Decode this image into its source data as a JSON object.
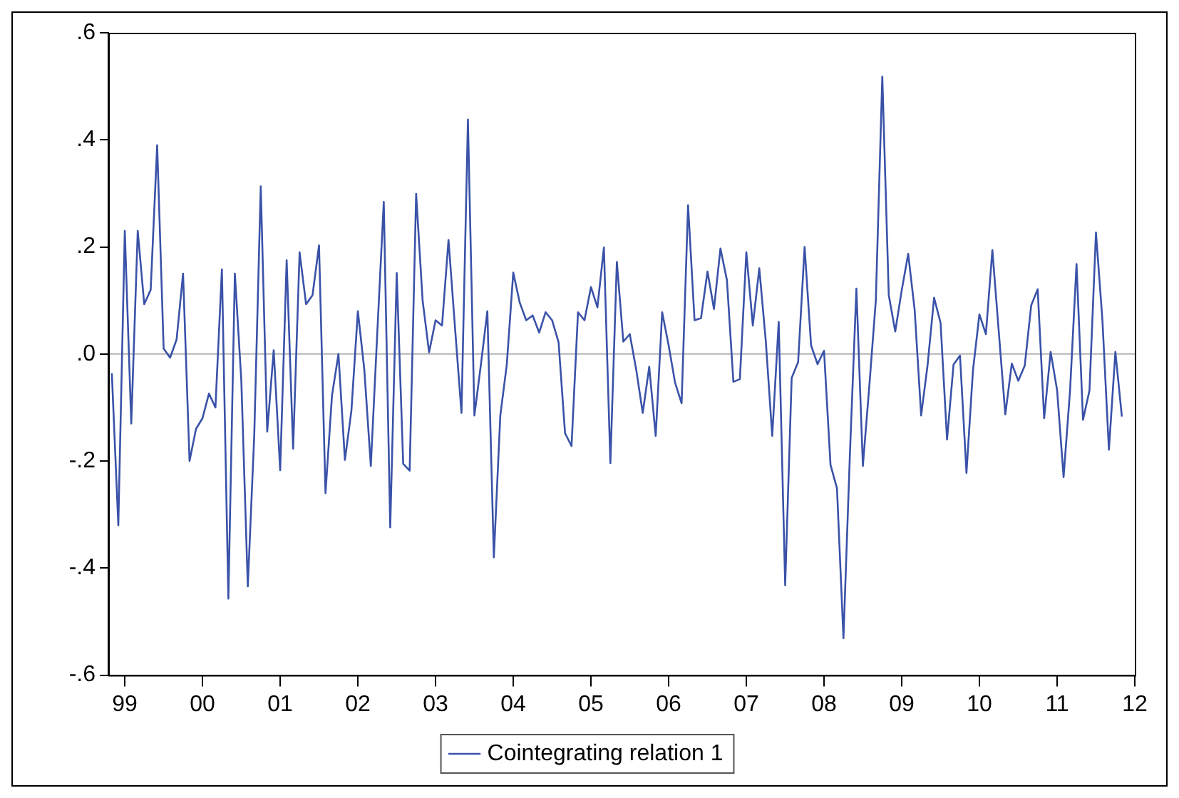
{
  "chart_data": {
    "type": "line",
    "x": [
      "1999-06",
      "1999-07",
      "1999-08",
      "1999-09",
      "1999-10",
      "1999-11",
      "1999-12",
      "2000-01",
      "2000-02",
      "2000-03",
      "2000-04",
      "2000-05",
      "2000-06",
      "2000-07",
      "2000-08",
      "2000-09",
      "2000-10",
      "2000-11",
      "2000-12",
      "2001-01",
      "2001-02",
      "2001-03",
      "2001-04",
      "2001-05",
      "2001-06",
      "2001-07",
      "2001-08",
      "2001-09",
      "2001-10",
      "2001-11",
      "2001-12",
      "2002-01",
      "2002-02",
      "2002-03",
      "2002-04",
      "2002-05",
      "2002-06",
      "2002-07",
      "2002-08",
      "2002-09",
      "2002-10",
      "2002-11",
      "2002-12",
      "2003-01",
      "2003-02",
      "2003-03",
      "2003-04",
      "2003-05",
      "2003-06",
      "2003-07",
      "2003-08",
      "2003-09",
      "2003-10",
      "2003-11",
      "2003-12",
      "2004-01",
      "2004-02",
      "2004-03",
      "2004-04",
      "2004-05",
      "2004-06",
      "2004-07",
      "2004-08",
      "2004-09",
      "2004-10",
      "2004-11",
      "2004-12",
      "2005-01",
      "2005-02",
      "2005-03",
      "2005-04",
      "2005-05",
      "2005-06",
      "2005-07",
      "2005-08",
      "2005-09",
      "2005-10",
      "2005-11",
      "2005-12",
      "2006-01",
      "2006-02",
      "2006-03",
      "2006-04",
      "2006-05",
      "2006-06",
      "2006-07",
      "2006-08",
      "2006-09",
      "2006-10",
      "2006-11",
      "2006-12",
      "2007-01",
      "2007-02",
      "2007-03",
      "2007-04",
      "2007-05",
      "2007-06",
      "2007-07",
      "2007-08",
      "2007-09",
      "2007-10",
      "2007-11",
      "2007-12",
      "2008-01",
      "2008-02",
      "2008-03",
      "2008-04",
      "2008-05",
      "2008-06",
      "2008-07",
      "2008-08",
      "2008-09",
      "2008-10",
      "2008-11",
      "2008-12",
      "2009-01",
      "2009-02",
      "2009-03",
      "2009-04",
      "2009-05",
      "2009-06",
      "2009-07",
      "2009-08",
      "2009-09",
      "2009-10",
      "2009-11",
      "2009-12",
      "2010-01",
      "2010-02",
      "2010-03",
      "2010-04",
      "2010-05",
      "2010-06",
      "2010-07",
      "2010-08",
      "2010-09",
      "2010-10",
      "2010-11",
      "2010-12",
      "2011-01",
      "2011-02",
      "2011-03",
      "2011-04",
      "2011-05",
      "2011-06",
      "2011-07",
      "2011-08",
      "2011-09",
      "2011-10",
      "2011-11",
      "2011-12",
      "2012-01",
      "2012-02",
      "2012-03",
      "2012-04",
      "2012-05",
      "2012-06"
    ],
    "series": [
      {
        "name": "Cointegrating relation 1",
        "color": "#3a52a8",
        "values": [
          -0.036,
          -0.32,
          0.23,
          -0.13,
          0.23,
          0.093,
          0.12,
          0.39,
          0.01,
          -0.007,
          0.027,
          0.15,
          -0.2,
          -0.14,
          -0.12,
          -0.074,
          -0.1,
          0.158,
          -0.457,
          0.15,
          -0.05,
          -0.434,
          -0.15,
          0.313,
          -0.145,
          0.007,
          -0.217,
          0.175,
          -0.177,
          0.19,
          0.093,
          0.11,
          0.203,
          -0.26,
          -0.078,
          0,
          -0.198,
          -0.106,
          0.08,
          -0.03,
          -0.209,
          0.04,
          0.284,
          -0.324,
          0.151,
          -0.205,
          -0.218,
          0.299,
          0.1,
          0.003,
          0.063,
          0.053,
          0.213,
          0.05,
          -0.11,
          0.438,
          -0.115,
          -0.02,
          0.08,
          -0.38,
          -0.115,
          -0.02,
          0.152,
          0.096,
          0.063,
          0.072,
          0.04,
          0.078,
          0.063,
          0.022,
          -0.148,
          -0.172,
          0.078,
          0.063,
          0.125,
          0.087,
          0.199,
          -0.204,
          0.172,
          0.023,
          0.037,
          -0.03,
          -0.11,
          -0.024,
          -0.153,
          0.078,
          0.016,
          -0.054,
          -0.092,
          0.278,
          0.063,
          0.067,
          0.154,
          0.084,
          0.197,
          0.138,
          -0.052,
          -0.047,
          0.19,
          0.053,
          0.16,
          0.025,
          -0.153,
          0.06,
          -0.432,
          -0.045,
          -0.015,
          0.2,
          0.016,
          -0.019,
          0.006,
          -0.207,
          -0.251,
          -0.531,
          -0.186,
          0.122,
          -0.209,
          -0.059,
          0.1,
          0.518,
          0.11,
          0.042,
          0.119,
          0.187,
          0.082,
          -0.115,
          -0.02,
          0.105,
          0.058,
          -0.16,
          -0.02,
          -0.003,
          -0.222,
          -0.031,
          0.074,
          0.037,
          0.194,
          0.04,
          -0.113,
          -0.018,
          -0.05,
          -0.022,
          0.091,
          0.121,
          -0.12,
          0.004,
          -0.068,
          -0.23,
          -0.068,
          0.168,
          -0.123,
          -0.068,
          0.227,
          0.063,
          -0.179,
          0.004,
          -0.117
        ]
      }
    ],
    "xlim": [
      "1999-05-15",
      "2012-08-01"
    ],
    "xticks": [
      {
        "value": "1999-08",
        "label": "99"
      },
      {
        "value": "2000-08",
        "label": "00"
      },
      {
        "value": "2001-08",
        "label": "01"
      },
      {
        "value": "2002-08",
        "label": "02"
      },
      {
        "value": "2003-08",
        "label": "03"
      },
      {
        "value": "2004-08",
        "label": "04"
      },
      {
        "value": "2005-08",
        "label": "05"
      },
      {
        "value": "2006-08",
        "label": "06"
      },
      {
        "value": "2007-08",
        "label": "07"
      },
      {
        "value": "2008-08",
        "label": "08"
      },
      {
        "value": "2009-08",
        "label": "09"
      },
      {
        "value": "2010-08",
        "label": "10"
      },
      {
        "value": "2011-08",
        "label": "11"
      },
      {
        "value": "2012-08",
        "label": "12"
      }
    ],
    "ylim": [
      -0.6,
      0.6
    ],
    "yticks": [
      {
        "value": -0.6,
        "label": "-.6"
      },
      {
        "value": -0.4,
        "label": "-.4"
      },
      {
        "value": -0.2,
        "label": "-.2"
      },
      {
        "value": 0,
        "label": ".0"
      },
      {
        "value": 0.2,
        "label": ".2"
      },
      {
        "value": 0.4,
        "label": ".4"
      },
      {
        "value": 0.6,
        "label": ".6"
      }
    ],
    "ref_lines": [
      {
        "axis": "y",
        "value": 0,
        "color": "#b4b4b4"
      }
    ],
    "grid": false,
    "legend": "bottom",
    "marker": "none",
    "line_style": "solid"
  }
}
